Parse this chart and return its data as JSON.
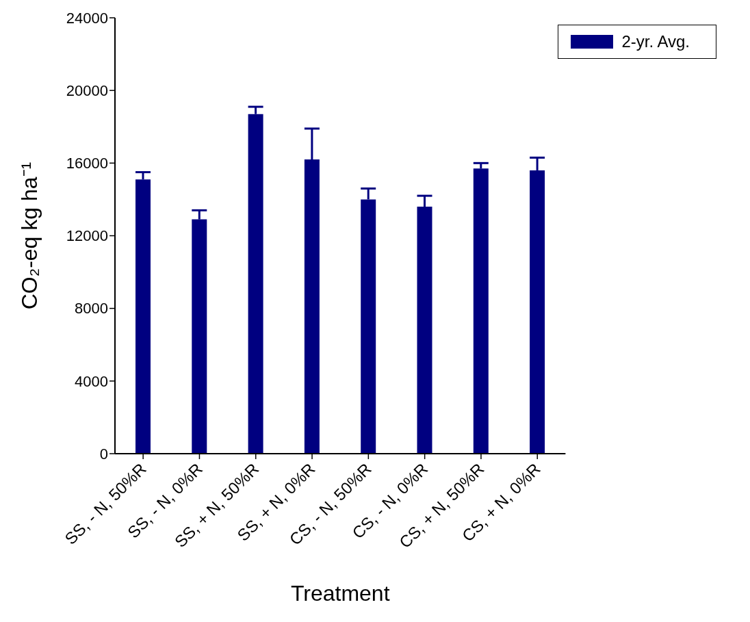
{
  "chart_data": {
    "type": "bar",
    "xlabel": "Treatment",
    "ylabel": "CO₂-eq kg ha⁻¹",
    "categories": [
      "SS, - N, 50%R",
      "SS, - N, 0%R",
      "SS, + N, 50%R",
      "SS, + N, 0%R",
      "CS, - N, 50%R",
      "CS, - N, 0%R",
      "CS, + N, 50%R",
      "CS, + N, 0%R"
    ],
    "series": [
      {
        "name": "2-yr. Avg.",
        "color": "#000080",
        "values": [
          15100,
          12900,
          18700,
          16200,
          14000,
          13600,
          15700,
          15600
        ],
        "errors": [
          [
            15100,
            15500
          ],
          [
            12900,
            13400
          ],
          [
            18700,
            19100
          ],
          [
            16200,
            17900
          ],
          [
            14000,
            14600
          ],
          [
            13600,
            14200
          ],
          [
            15700,
            16000
          ],
          [
            15600,
            16300
          ]
        ]
      }
    ],
    "ylim": [
      0,
      24000
    ],
    "yticks": [
      0,
      4000,
      8000,
      12000,
      16000,
      20000,
      24000
    ],
    "grid": false,
    "legend": "top right"
  }
}
